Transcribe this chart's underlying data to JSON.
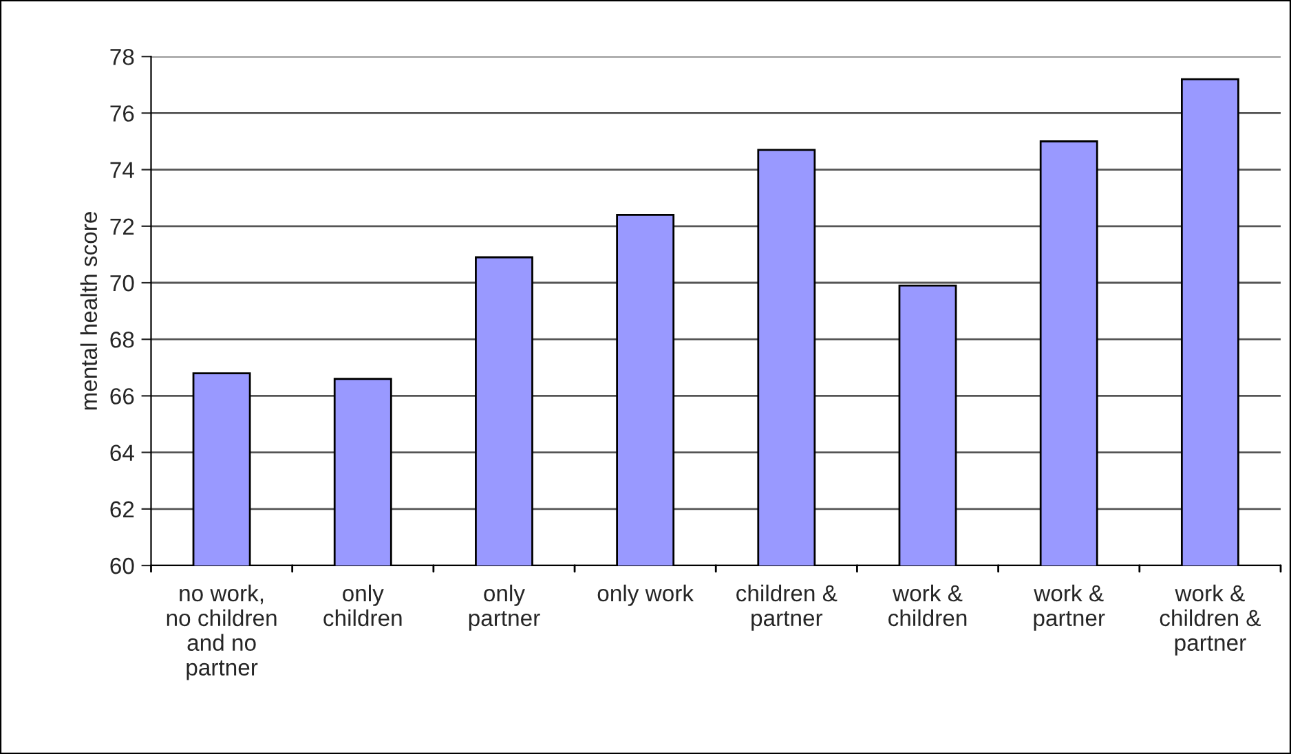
{
  "chart_data": {
    "type": "bar",
    "ylabel": "mental health score",
    "categories": [
      "no work,\nno children\nand no\npartner",
      "only\nchildren",
      "only\npartner",
      "only work",
      "children &\npartner",
      "work &\nchildren",
      "work &\npartner",
      "work &\nchildren &\npartner"
    ],
    "values": [
      66.8,
      66.6,
      70.9,
      72.4,
      74.7,
      69.9,
      75.0,
      77.2
    ],
    "color": "#9999ff",
    "ylim": [
      60,
      78
    ],
    "yticks": [
      60,
      62,
      64,
      66,
      68,
      70,
      72,
      74,
      76,
      78
    ],
    "grid": "y"
  }
}
